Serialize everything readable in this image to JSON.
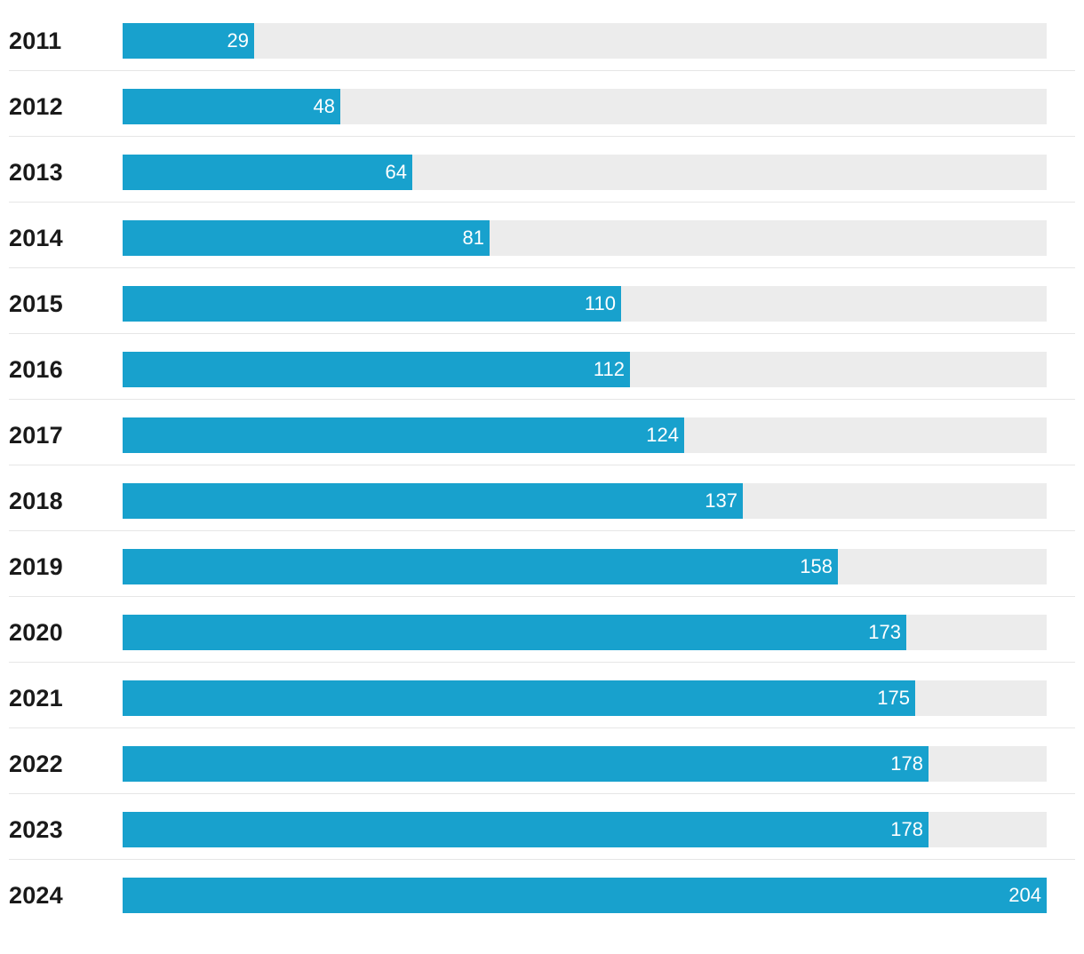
{
  "chart_data": {
    "type": "bar",
    "orientation": "horizontal",
    "categories": [
      "2011",
      "2012",
      "2013",
      "2014",
      "2015",
      "2016",
      "2017",
      "2018",
      "2019",
      "2020",
      "2021",
      "2022",
      "2023",
      "2024"
    ],
    "values": [
      29,
      48,
      64,
      81,
      110,
      112,
      124,
      137,
      158,
      173,
      175,
      178,
      178,
      204
    ],
    "xlim": [
      0,
      204
    ],
    "grid": false,
    "legend": "none",
    "colors": {
      "bar": "#18a1cd",
      "track": "#ececec",
      "value_text": "#ffffff",
      "category_text": "#1a1a1a",
      "divider": "#e6e6e6"
    }
  }
}
